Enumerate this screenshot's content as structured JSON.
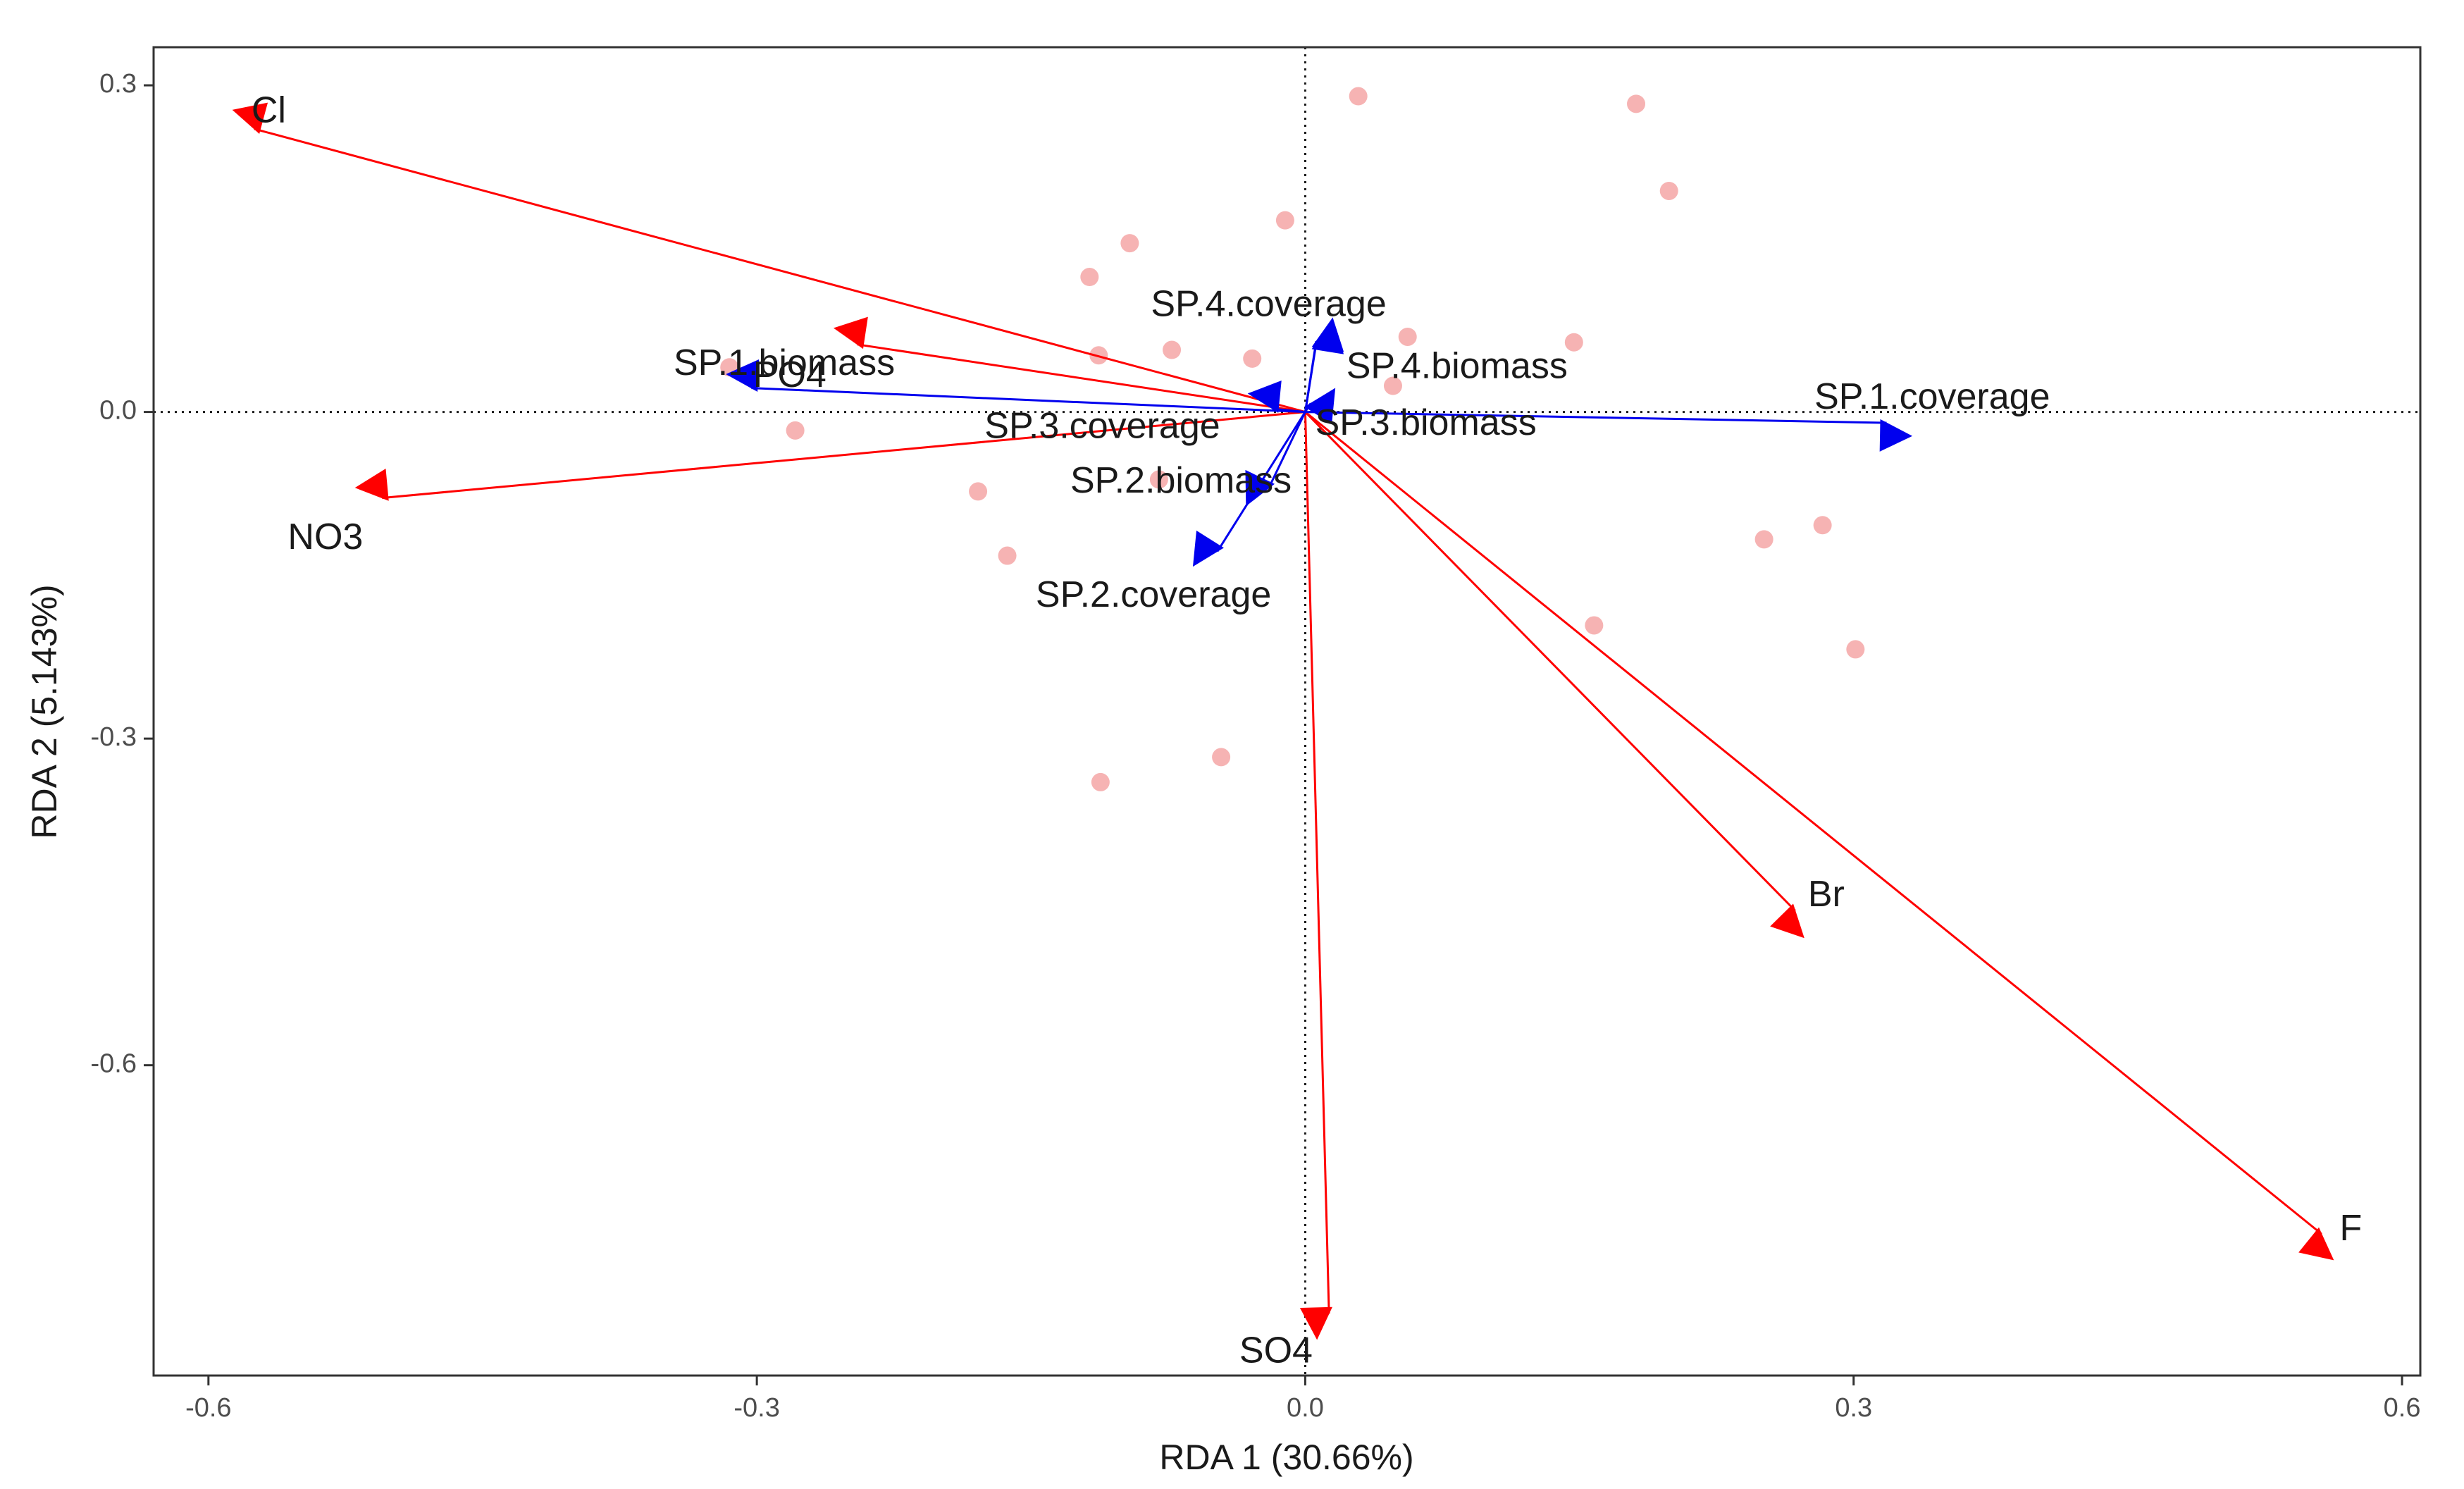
{
  "chart_data": {
    "type": "scatter",
    "subtype": "rda-biplot",
    "title": "",
    "xlabel": "RDA 1 (30.66%)",
    "ylabel": "RDA 2 (5.143%)",
    "xlim": [
      -0.63,
      0.61
    ],
    "ylim": [
      -0.885,
      0.335
    ],
    "x_ticks": [
      -0.6,
      -0.3,
      0.0,
      0.3,
      0.6
    ],
    "x_tick_labels": [
      "-0.6",
      "-0.3",
      "0.0",
      "0.3",
      "0.6"
    ],
    "y_ticks": [
      0.3,
      0.0,
      -0.3,
      -0.6
    ],
    "y_tick_labels": [
      "0.3",
      "0.0",
      "-0.3",
      "-0.6"
    ],
    "reference_lines": {
      "x": 0,
      "y": 0,
      "style": "dotted"
    },
    "colors": {
      "sites": "#f4a6a6",
      "environment_arrows": "#ff0000",
      "species_arrows": "#0000ee",
      "frame": "#333333",
      "reference": "#1a1a1a"
    },
    "sites": [
      {
        "x": 0.029,
        "y": 0.29
      },
      {
        "x": 0.181,
        "y": 0.283
      },
      {
        "x": 0.199,
        "y": 0.203
      },
      {
        "x": -0.011,
        "y": 0.176
      },
      {
        "x": -0.096,
        "y": 0.155
      },
      {
        "x": -0.118,
        "y": 0.124
      },
      {
        "x": 0.056,
        "y": 0.069
      },
      {
        "x": 0.147,
        "y": 0.064
      },
      {
        "x": -0.073,
        "y": 0.057
      },
      {
        "x": -0.113,
        "y": 0.052
      },
      {
        "x": -0.029,
        "y": 0.049
      },
      {
        "x": 0.048,
        "y": 0.024
      },
      {
        "x": -0.315,
        "y": 0.041
      },
      {
        "x": -0.279,
        "y": -0.017
      },
      {
        "x": -0.179,
        "y": -0.073
      },
      {
        "x": -0.08,
        "y": -0.062
      },
      {
        "x": -0.163,
        "y": -0.132
      },
      {
        "x": 0.158,
        "y": -0.196
      },
      {
        "x": 0.251,
        "y": -0.117
      },
      {
        "x": 0.283,
        "y": -0.104
      },
      {
        "x": 0.301,
        "y": -0.218
      },
      {
        "x": -0.046,
        "y": -0.317
      },
      {
        "x": -0.112,
        "y": -0.34
      }
    ],
    "environment_arrows": [
      {
        "name": "Cl",
        "x": -0.575,
        "y": 0.26,
        "label_x": -0.567,
        "label_y": 0.275
      },
      {
        "name": "PO4",
        "x": -0.245,
        "y": 0.062,
        "label_x": -0.282,
        "label_y": 0.032
      },
      {
        "name": "NO3",
        "x": -0.505,
        "y": -0.079,
        "label_x": -0.536,
        "label_y": -0.117
      },
      {
        "name": "Br",
        "x": 0.268,
        "y": -0.458,
        "label_x": 0.285,
        "label_y": -0.445
      },
      {
        "name": "F",
        "x": 0.556,
        "y": -0.755,
        "label_x": 0.572,
        "label_y": -0.752
      },
      {
        "name": "SO4",
        "x": 0.013,
        "y": -0.828,
        "label_x": -0.016,
        "label_y": -0.864
      }
    ],
    "species_arrows": [
      {
        "name": "SP.1.biomass",
        "x": -0.303,
        "y": 0.022,
        "label_x": -0.285,
        "label_y": 0.043
      },
      {
        "name": "SP.1.coverage",
        "x": 0.318,
        "y": -0.01,
        "label_x": 0.343,
        "label_y": 0.012
      },
      {
        "name": "SP.2.biomass",
        "x": -0.02,
        "y": -0.07,
        "label_x": -0.068,
        "label_y": -0.065
      },
      {
        "name": "SP.2.coverage",
        "x": -0.048,
        "y": -0.128,
        "label_x": -0.083,
        "label_y": -0.17
      },
      {
        "name": "SP.3.biomass",
        "x": 0.003,
        "y": 0.008,
        "label_x": 0.066,
        "label_y": -0.012
      },
      {
        "name": "SP.3.coverage",
        "x": -0.018,
        "y": 0.003,
        "label_x": -0.111,
        "label_y": -0.015
      },
      {
        "name": "SP.4.biomass",
        "x": 0.006,
        "y": 0.063,
        "label_x": 0.083,
        "label_y": 0.04
      },
      {
        "name": "SP.4.coverage",
        "x": 0.006,
        "y": 0.065,
        "label_x": -0.02,
        "label_y": 0.097
      }
    ]
  }
}
